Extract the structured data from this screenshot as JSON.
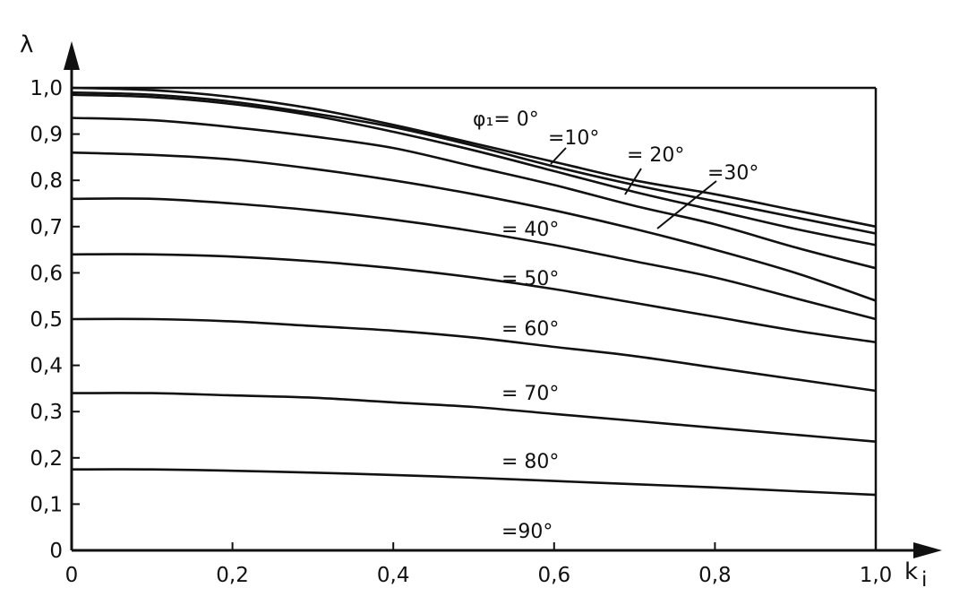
{
  "chart_data": {
    "type": "line",
    "xlabel": "k",
    "xlabel_sub": "i",
    "ylabel": "λ",
    "xlim": [
      0,
      1.0
    ],
    "ylim": [
      0,
      1.0
    ],
    "grid": false,
    "x_ticks": [
      "0",
      "0,2",
      "0,4",
      "0,6",
      "0,8",
      "1,0"
    ],
    "y_ticks": [
      "0",
      "0,1",
      "0,2",
      "0,3",
      "0,4",
      "0,5",
      "0,6",
      "0,7",
      "0,8",
      "0,9",
      "1,0"
    ],
    "x": [
      0,
      0.1,
      0.2,
      0.3,
      0.4,
      0.5,
      0.6,
      0.7,
      0.8,
      0.9,
      1.0
    ],
    "series": [
      {
        "name": "φ₁= 0°",
        "values": [
          1.0,
          0.995,
          0.98,
          0.955,
          0.92,
          0.88,
          0.84,
          0.8,
          0.77,
          0.735,
          0.7
        ]
      },
      {
        "name": "=10°",
        "values": [
          0.99,
          0.985,
          0.97,
          0.945,
          0.915,
          0.875,
          0.83,
          0.79,
          0.755,
          0.72,
          0.685
        ]
      },
      {
        "name": "= 20°",
        "values": [
          0.985,
          0.98,
          0.965,
          0.94,
          0.905,
          0.865,
          0.82,
          0.775,
          0.735,
          0.695,
          0.66
        ]
      },
      {
        "name": "=30°",
        "values": [
          0.935,
          0.93,
          0.915,
          0.895,
          0.87,
          0.83,
          0.79,
          0.745,
          0.705,
          0.655,
          0.61
        ]
      },
      {
        "name": "= 40°",
        "values": [
          0.86,
          0.855,
          0.845,
          0.825,
          0.8,
          0.77,
          0.735,
          0.695,
          0.65,
          0.6,
          0.54
        ]
      },
      {
        "name": "= 50°",
        "values": [
          0.76,
          0.76,
          0.75,
          0.735,
          0.715,
          0.69,
          0.66,
          0.625,
          0.59,
          0.545,
          0.5
        ]
      },
      {
        "name": "= 60°",
        "values": [
          0.64,
          0.64,
          0.635,
          0.625,
          0.61,
          0.59,
          0.565,
          0.535,
          0.505,
          0.475,
          0.45
        ]
      },
      {
        "name": "= 70°",
        "values": [
          0.5,
          0.5,
          0.495,
          0.485,
          0.475,
          0.46,
          0.44,
          0.42,
          0.395,
          0.37,
          0.345
        ]
      },
      {
        "name": "= 80°",
        "values": [
          0.34,
          0.34,
          0.335,
          0.33,
          0.32,
          0.31,
          0.295,
          0.28,
          0.265,
          0.25,
          0.235
        ]
      },
      {
        "name": "=90°",
        "values": [
          0.175,
          0.175,
          0.172,
          0.168,
          0.163,
          0.157,
          0.15,
          0.143,
          0.136,
          0.128,
          0.12
        ]
      }
    ]
  }
}
